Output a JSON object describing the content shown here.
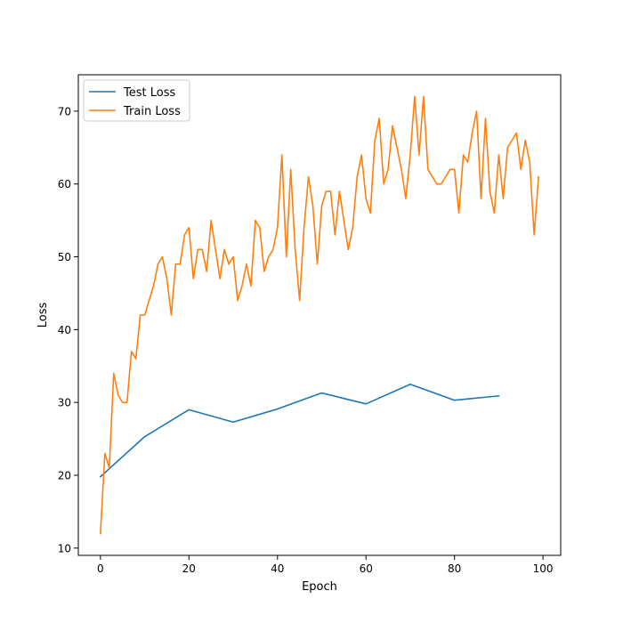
{
  "chart_data": {
    "type": "line",
    "title": "",
    "xlabel": "Epoch",
    "ylabel": "Loss",
    "xlim": [
      -5,
      104
    ],
    "ylim": [
      9,
      75
    ],
    "xticks": [
      0,
      20,
      40,
      60,
      80,
      100
    ],
    "yticks": [
      10,
      20,
      30,
      40,
      50,
      60,
      70
    ],
    "grid": false,
    "legend_position": "top-left",
    "series": [
      {
        "name": "Test Loss",
        "color": "#1f77b4",
        "x": [
          0,
          10,
          20,
          30,
          40,
          50,
          60,
          70,
          80,
          90
        ],
        "y": [
          19.8,
          25.3,
          29.0,
          27.3,
          29.1,
          31.3,
          29.8,
          32.5,
          30.3,
          30.9
        ]
      },
      {
        "name": "Train Loss",
        "color": "#ff7f0e",
        "x": [
          0,
          1,
          2,
          3,
          4,
          5,
          6,
          7,
          8,
          9,
          10,
          11,
          12,
          13,
          14,
          15,
          16,
          17,
          18,
          19,
          20,
          21,
          22,
          23,
          24,
          25,
          26,
          27,
          28,
          29,
          30,
          31,
          32,
          33,
          34,
          35,
          36,
          37,
          38,
          39,
          40,
          41,
          42,
          43,
          44,
          45,
          46,
          47,
          48,
          49,
          50,
          51,
          52,
          53,
          54,
          55,
          56,
          57,
          58,
          59,
          60,
          61,
          62,
          63,
          64,
          65,
          66,
          67,
          68,
          69,
          70,
          71,
          72,
          73,
          74,
          75,
          76,
          77,
          78,
          79,
          80,
          81,
          82,
          83,
          84,
          85,
          86,
          87,
          88,
          89,
          90,
          91,
          92,
          93,
          94,
          95,
          96,
          97,
          98,
          99
        ],
        "y": [
          12,
          23,
          21,
          34,
          31,
          30,
          30,
          37,
          36,
          42,
          42,
          44,
          46,
          49,
          50,
          47,
          42,
          49,
          49,
          53,
          54,
          47,
          51,
          51,
          48,
          55,
          51,
          47,
          51,
          49,
          50,
          44,
          46,
          49,
          46,
          55,
          54,
          48,
          50,
          51,
          54,
          64,
          50,
          62,
          51,
          44,
          54,
          61,
          57,
          49,
          57,
          59,
          59,
          53,
          59,
          55,
          51,
          54,
          61,
          64,
          58,
          56,
          66,
          69,
          60,
          62,
          68,
          65,
          62,
          58,
          64,
          72,
          64,
          72,
          62,
          61,
          60,
          60,
          61,
          62,
          62,
          56,
          64,
          63,
          67,
          70,
          58,
          69,
          59,
          56,
          64,
          58,
          65,
          66,
          67,
          62,
          66,
          63,
          53,
          61
        ]
      }
    ]
  }
}
